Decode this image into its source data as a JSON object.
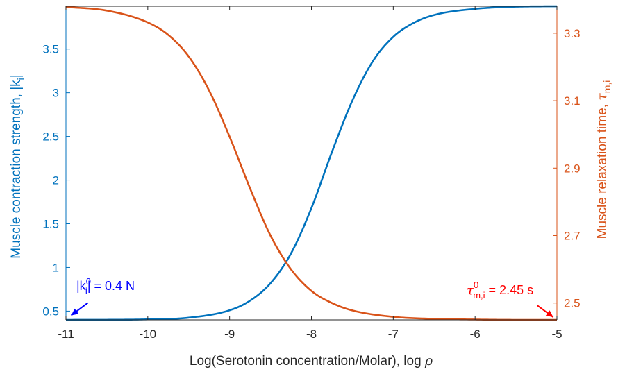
{
  "chart_data": {
    "type": "line",
    "title": "",
    "xlabel": {
      "text": "Log(Serotonin concentration/Molar), log ",
      "symbol": "ρ"
    },
    "ylabel_left": {
      "text": "Muscle contraction strength, |k",
      "sub": "i",
      "suffix": "|"
    },
    "ylabel_right": {
      "text": "Muscle relaxation time, ",
      "symbol": "τ",
      "sub": "m,i"
    },
    "xlim": [
      -11,
      -5
    ],
    "ylim_left": [
      0.4,
      3.99
    ],
    "ylim_right": [
      2.45,
      3.38
    ],
    "x_ticks": [
      -11,
      -10,
      -9,
      -8,
      -7,
      -6,
      -5
    ],
    "x_tick_labels": [
      "-11",
      "-10",
      "-9",
      "-8",
      "-7",
      "-6",
      "-5"
    ],
    "y_ticks_left": [
      0.5,
      1,
      1.5,
      2,
      2.5,
      3,
      3.5
    ],
    "y_tick_labels_left": [
      "0.5",
      "1",
      "1.5",
      "2",
      "2.5",
      "3",
      "3.5"
    ],
    "y_ticks_right": [
      2.5,
      2.7,
      2.9,
      3.1,
      3.3
    ],
    "y_tick_labels_right": [
      "2.5",
      "2.7",
      "2.9",
      "3.1",
      "3.3"
    ],
    "grid": false,
    "legend": "none",
    "series": [
      {
        "axis": "left",
        "color": "#0072BD",
        "x": [
          -11,
          -10.5,
          -10,
          -9.5,
          -9,
          -8.75,
          -8.5,
          -8.25,
          -8,
          -7.75,
          -7.5,
          -7.25,
          -7,
          -6.75,
          -6.5,
          -6,
          -5.5,
          -5
        ],
        "y": [
          0.4,
          0.401,
          0.406,
          0.425,
          0.51,
          0.62,
          0.82,
          1.16,
          1.68,
          2.32,
          2.91,
          3.36,
          3.64,
          3.8,
          3.89,
          3.96,
          3.985,
          3.99
        ]
      },
      {
        "axis": "right",
        "color": "#D95319",
        "x": [
          -11,
          -10.5,
          -10,
          -9.75,
          -9.5,
          -9.25,
          -9,
          -8.75,
          -8.5,
          -8.25,
          -8,
          -7.75,
          -7.5,
          -7,
          -6.5,
          -6,
          -5.5,
          -5
        ],
        "y": [
          3.378,
          3.367,
          3.332,
          3.295,
          3.231,
          3.13,
          2.993,
          2.84,
          2.7,
          2.6,
          2.536,
          2.5,
          2.478,
          2.459,
          2.453,
          2.451,
          2.45,
          2.45
        ]
      }
    ],
    "annotations": [
      {
        "id": "k0",
        "color": "#0000FF",
        "base": "|k",
        "sup": "0",
        "sub": "i",
        "tail": "| = 0.4 N",
        "points_to": {
          "x": -10.97,
          "y": 0.42,
          "axis": "left"
        }
      },
      {
        "id": "tau0",
        "color": "#FF0000",
        "base": "τ",
        "sup": "0",
        "sub": "m,i",
        "tail": " = 2.45 s",
        "points_to": {
          "x": -5.02,
          "y": 2.452,
          "axis": "right"
        }
      }
    ]
  }
}
